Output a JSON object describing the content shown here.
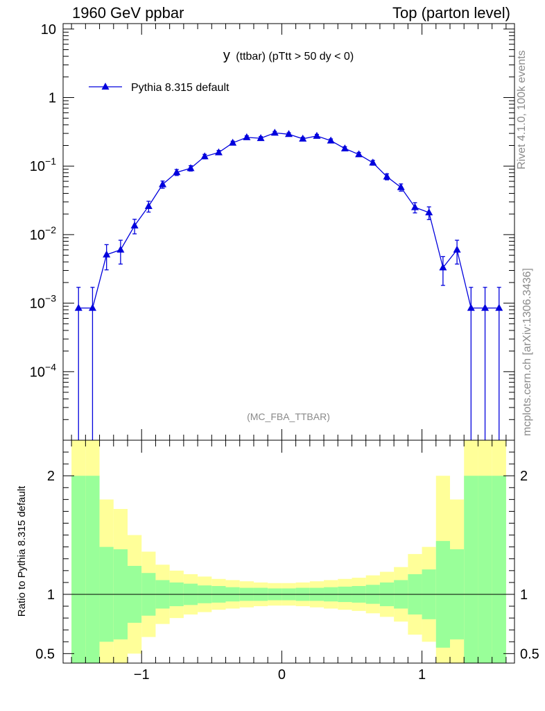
{
  "header": {
    "left": "1960 GeV ppbar",
    "right": "Top (parton level)"
  },
  "side_text": {
    "rivet": "Rivet 4.1.0,  100k events",
    "mcplots": "mcplots.cern.ch [arXiv:1306.3436]"
  },
  "colors": {
    "series": "#0000dd",
    "band_inner": "#99ff99",
    "band_outer": "#ffff99"
  },
  "chart_data": [
    {
      "type": "line",
      "title": "y (ttbar) (pTtt > 50 dy < 0)",
      "title_main": "y",
      "title_rest": "(ttbar) (pTtt > 50 dy < 0)",
      "analysis": "(MC_FBA_TTBAR)",
      "yscale": "log",
      "xlim": [
        -1.56,
        1.66
      ],
      "ylim": [
        1e-05,
        12
      ],
      "y_ticks": [
        {
          "value": 10,
          "label": "10"
        },
        {
          "value": 1,
          "label": "1"
        },
        {
          "value": 0.1,
          "base": "10",
          "exp": "−1"
        },
        {
          "value": 0.01,
          "base": "10",
          "exp": "−2"
        },
        {
          "value": 0.001,
          "base": "10",
          "exp": "−3"
        },
        {
          "value": 0.0001,
          "base": "10",
          "exp": "−4"
        }
      ],
      "legend": {
        "position": "top-left",
        "label": "Pythia 8.315 default"
      },
      "series": [
        {
          "name": "Pythia 8.315 default",
          "x": [
            -1.45,
            -1.35,
            -1.25,
            -1.15,
            -1.05,
            -0.95,
            -0.85,
            -0.75,
            -0.65,
            -0.55,
            -0.45,
            -0.35,
            -0.25,
            -0.15,
            -0.05,
            0.05,
            0.15,
            0.25,
            0.35,
            0.45,
            0.55,
            0.65,
            0.75,
            0.85,
            0.95,
            1.05,
            1.15,
            1.25,
            1.35,
            1.45,
            1.55
          ],
          "y": [
            0.00085,
            0.00085,
            0.0051,
            0.006,
            0.0135,
            0.026,
            0.054,
            0.081,
            0.093,
            0.138,
            0.158,
            0.218,
            0.262,
            0.255,
            0.305,
            0.292,
            0.25,
            0.275,
            0.235,
            0.18,
            0.148,
            0.112,
            0.07,
            0.049,
            0.025,
            0.021,
            0.0033,
            0.006,
            0.00085,
            0.00085,
            0.00085
          ],
          "yerr_rel": [
            1.0,
            1.0,
            0.4,
            0.38,
            0.24,
            0.18,
            0.12,
            0.1,
            0.09,
            0.075,
            0.07,
            0.06,
            0.055,
            0.055,
            0.05,
            0.05,
            0.055,
            0.055,
            0.06,
            0.065,
            0.07,
            0.08,
            0.1,
            0.12,
            0.17,
            0.21,
            0.45,
            0.38,
            1.0,
            1.0,
            1.0
          ]
        }
      ]
    },
    {
      "type": "area",
      "ylabel": "Ratio to Pythia 8.315 default",
      "xlim": [
        -1.56,
        1.66
      ],
      "ylim": [
        0.42,
        2.3
      ],
      "y_ticks": [
        {
          "value": 0.5,
          "label": "0.5"
        },
        {
          "value": 1,
          "label": "1"
        },
        {
          "value": 2,
          "label": "2"
        }
      ],
      "x_ticks": [
        {
          "value": -1,
          "label": "−1"
        },
        {
          "value": 0,
          "label": "0"
        },
        {
          "value": 1,
          "label": "1"
        }
      ],
      "bin_edges": [
        -1.5,
        -1.4,
        -1.3,
        -1.2,
        -1.1,
        -1.0,
        -0.9,
        -0.8,
        -0.7,
        -0.6,
        -0.5,
        -0.4,
        -0.3,
        -0.2,
        -0.1,
        0.0,
        0.1,
        0.2,
        0.3,
        0.4,
        0.5,
        0.6,
        0.7,
        0.8,
        0.9,
        1.0,
        1.1,
        1.2,
        1.3,
        1.4,
        1.5,
        1.6
      ],
      "inner_rel": [
        1.0,
        1.0,
        0.4,
        0.38,
        0.24,
        0.18,
        0.12,
        0.1,
        0.09,
        0.075,
        0.07,
        0.06,
        0.055,
        0.055,
        0.05,
        0.05,
        0.055,
        0.055,
        0.06,
        0.065,
        0.07,
        0.08,
        0.1,
        0.12,
        0.17,
        0.21,
        0.45,
        0.38,
        1.0,
        1.0,
        1.0
      ],
      "outer_rel": [
        2.0,
        2.0,
        0.8,
        0.72,
        0.5,
        0.36,
        0.25,
        0.2,
        0.17,
        0.15,
        0.13,
        0.12,
        0.11,
        0.1,
        0.095,
        0.095,
        0.1,
        0.11,
        0.12,
        0.13,
        0.14,
        0.16,
        0.19,
        0.23,
        0.34,
        0.4,
        1.0,
        0.8,
        2.0,
        2.0,
        2.0
      ],
      "reference_line": 1
    }
  ]
}
